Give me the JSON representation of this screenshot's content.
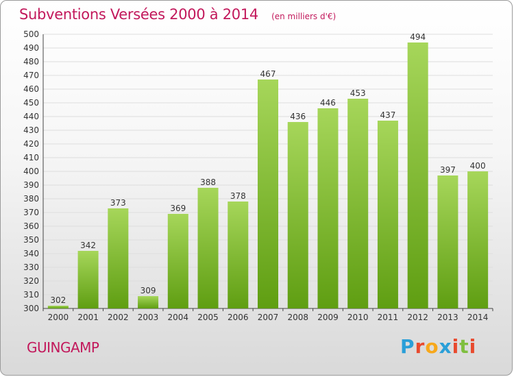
{
  "title": "Subventions Versées 2000 à 2014",
  "unit": "(en milliers d'€)",
  "commune": "GUINGAMP",
  "brand": {
    "letters": [
      "P",
      "r",
      "o",
      "x",
      "i",
      "t",
      "i"
    ],
    "colors": [
      "#2a9fd8",
      "#e84a2e",
      "#f7a81b",
      "#2a9fd8",
      "#e84a2e",
      "#7fbf3f",
      "#e84a2e"
    ]
  },
  "colors": {
    "title": "#c2185b",
    "bar_top": "#a6d65a",
    "bar_bottom": "#5f9e12",
    "grid": "#dddddd"
  },
  "chart_data": {
    "type": "bar",
    "categories": [
      "2000",
      "2001",
      "2002",
      "2003",
      "2004",
      "2005",
      "2006",
      "2007",
      "2008",
      "2009",
      "2010",
      "2011",
      "2012",
      "2013",
      "2014"
    ],
    "values": [
      302,
      342,
      373,
      309,
      369,
      388,
      378,
      467,
      436,
      446,
      453,
      437,
      494,
      397,
      400
    ],
    "ylim": [
      300,
      500
    ],
    "yticks": [
      300,
      310,
      320,
      330,
      340,
      350,
      360,
      370,
      380,
      390,
      400,
      410,
      420,
      430,
      440,
      450,
      460,
      470,
      480,
      490,
      500
    ],
    "grid": true,
    "legend": "none"
  }
}
